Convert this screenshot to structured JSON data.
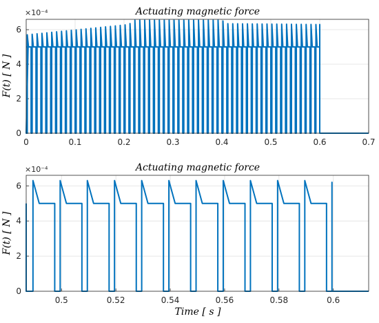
{
  "chart_data": [
    {
      "type": "line",
      "title": "Actuating magnetic force",
      "xlabel": "",
      "ylabel": "F(t) [ N ]",
      "multiplier": "×10⁻⁴",
      "xlim": [
        0,
        0.7
      ],
      "ylim": [
        0,
        6.6
      ],
      "xticks": [
        0,
        0.1,
        0.2,
        0.3,
        0.4,
        0.5,
        0.6,
        0.7
      ],
      "xtick_labels": [
        "0",
        "0.1",
        "0.2",
        "0.3",
        "0.4",
        "0.5",
        "0.6",
        "0.7"
      ],
      "yticks": [
        0,
        2,
        4,
        6
      ],
      "ytick_labels": [
        "0",
        "2",
        "4",
        "6"
      ],
      "grid": true,
      "color": "#0072BD",
      "series": [
        {
          "pulse_period": 0.01,
          "pulse_duty": 0.78,
          "plateau": 5.0,
          "on_until": 0.6,
          "peaks": [
            [
              0.0,
              5.7
            ],
            [
              0.21,
              6.3
            ],
            [
              0.22,
              6.55
            ],
            [
              0.4,
              6.55
            ],
            [
              0.41,
              6.35
            ],
            [
              0.6,
              6.3
            ]
          ]
        }
      ]
    },
    {
      "type": "line",
      "title": "Actuating magnetic force",
      "xlabel": "Time [ s ]",
      "ylabel": "F(t) [ N ]",
      "multiplier": "×10⁻⁴",
      "xlim": [
        0.487,
        0.613
      ],
      "ylim": [
        0,
        6.6
      ],
      "xticks": [
        0.5,
        0.52,
        0.54,
        0.56,
        0.58,
        0.6
      ],
      "xtick_labels": [
        "0.5",
        "0.52",
        "0.54",
        "0.56",
        "0.58",
        "0.6"
      ],
      "yticks": [
        0,
        2,
        4,
        6
      ],
      "ytick_labels": [
        "0",
        "2",
        "4",
        "6"
      ],
      "grid": true,
      "color": "#0072BD",
      "series": [
        {
          "points": [
            [
              0.487,
              5.0
            ],
            [
              0.487,
              0.0
            ],
            [
              0.4895,
              0.0
            ],
            [
              0.4895,
              6.3
            ],
            [
              0.4918,
              5.0
            ],
            [
              0.4975,
              5.0
            ],
            [
              0.4975,
              0.0
            ],
            [
              0.4995,
              0.0
            ],
            [
              0.4995,
              6.3
            ],
            [
              0.5018,
              5.0
            ],
            [
              0.5075,
              5.0
            ],
            [
              0.5075,
              0.0
            ],
            [
              0.5095,
              0.0
            ],
            [
              0.5095,
              6.3
            ],
            [
              0.5118,
              5.0
            ],
            [
              0.5175,
              5.0
            ],
            [
              0.5175,
              0.0
            ],
            [
              0.5195,
              0.0
            ],
            [
              0.5195,
              6.3
            ],
            [
              0.5218,
              5.0
            ],
            [
              0.5275,
              5.0
            ],
            [
              0.5275,
              0.0
            ],
            [
              0.5295,
              0.0
            ],
            [
              0.5295,
              6.3
            ],
            [
              0.5318,
              5.0
            ],
            [
              0.5375,
              5.0
            ],
            [
              0.5375,
              0.0
            ],
            [
              0.5395,
              0.0
            ],
            [
              0.5395,
              6.3
            ],
            [
              0.5418,
              5.0
            ],
            [
              0.5475,
              5.0
            ],
            [
              0.5475,
              0.0
            ],
            [
              0.5495,
              0.0
            ],
            [
              0.5495,
              6.3
            ],
            [
              0.5518,
              5.0
            ],
            [
              0.5575,
              5.0
            ],
            [
              0.5575,
              0.0
            ],
            [
              0.5595,
              0.0
            ],
            [
              0.5595,
              6.3
            ],
            [
              0.5618,
              5.0
            ],
            [
              0.5675,
              5.0
            ],
            [
              0.5675,
              0.0
            ],
            [
              0.5695,
              0.0
            ],
            [
              0.5695,
              6.3
            ],
            [
              0.5718,
              5.0
            ],
            [
              0.5775,
              5.0
            ],
            [
              0.5775,
              0.0
            ],
            [
              0.5795,
              0.0
            ],
            [
              0.5795,
              6.3
            ],
            [
              0.5818,
              5.0
            ],
            [
              0.5875,
              5.0
            ],
            [
              0.5875,
              0.0
            ],
            [
              0.5895,
              0.0
            ],
            [
              0.5895,
              6.3
            ],
            [
              0.5918,
              5.0
            ],
            [
              0.5975,
              5.0
            ],
            [
              0.5975,
              0.0
            ],
            [
              0.5995,
              0.0
            ],
            [
              0.5995,
              6.2
            ],
            [
              0.5995,
              0.0
            ],
            [
              0.613,
              0.0
            ]
          ]
        }
      ]
    }
  ]
}
